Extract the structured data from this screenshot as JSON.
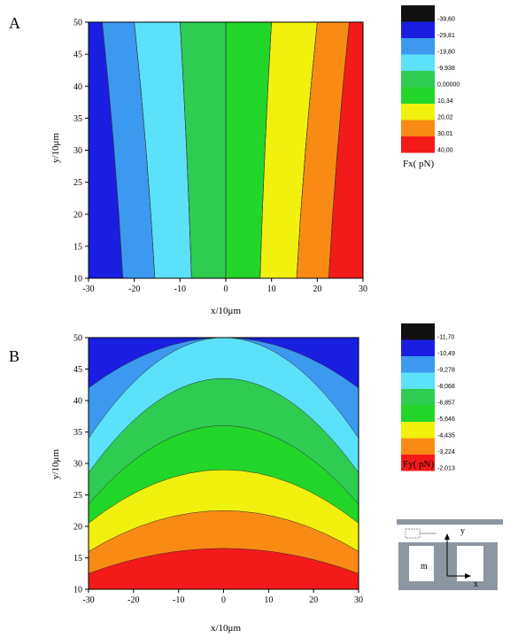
{
  "colors": {
    "palette": [
      "#111111",
      "#1a1ee0",
      "#3b99f0",
      "#5ce1fa",
      "#2ecc50",
      "#22d629",
      "#f2f00e",
      "#f98b14",
      "#f31a1a"
    ]
  },
  "chart_data": [
    {
      "type": "heatmap",
      "panel_label": "A",
      "xlabel": "x/10μm",
      "ylabel": "y/10μm",
      "xlim": [
        -30,
        30
      ],
      "ylim": [
        10,
        50
      ],
      "x_ticks": [
        "-30",
        "-20",
        "-10",
        "0",
        "10",
        "20",
        "30"
      ],
      "y_ticks": [
        "10",
        "15",
        "20",
        "25",
        "30",
        "35",
        "40",
        "45",
        "50"
      ],
      "colorbar_title": "Fx( pN)",
      "colorbar_labels": [
        "-39,60",
        "-29,81",
        "-19,80",
        "-9,938",
        "0,00000",
        "10,34",
        "20,02",
        "30,01",
        "40,00"
      ],
      "contour_levels": [
        -29.81,
        -19.8,
        -9.938,
        0,
        10.34,
        20.02,
        30.01
      ],
      "contour_x_at_y": {
        "y": [
          10,
          50
        ],
        "top": [
          -27,
          -20,
          -10,
          0,
          10,
          20,
          27
        ],
        "bottom": [
          -22.5,
          -15.5,
          -7.5,
          0,
          7.5,
          15.5,
          22.5
        ]
      }
    },
    {
      "type": "heatmap",
      "panel_label": "B",
      "xlabel": "x/10μm",
      "ylabel": "y/10μm",
      "xlim": [
        -30,
        30
      ],
      "ylim": [
        10,
        50
      ],
      "x_ticks": [
        "-30",
        "-20",
        "-10",
        "0",
        "10",
        "20",
        "30"
      ],
      "y_ticks": [
        "10",
        "15",
        "20",
        "25",
        "30",
        "35",
        "40",
        "45",
        "50"
      ],
      "colorbar_title": "Fy( pN)",
      "colorbar_labels": [
        "-11,70",
        "-10,49",
        "-9,278",
        "-8,068",
        "-6,857",
        "-5,646",
        "-4,435",
        "-3,224",
        "-2,013"
      ],
      "contour_y_at_x": {
        "x": [
          -30,
          0,
          30
        ],
        "levels": [
          {
            "value": -10.49,
            "center": 50,
            "edge": 42
          },
          {
            "value": -9.278,
            "center": 50,
            "edge": 34
          },
          {
            "value": -8.068,
            "center": 43.5,
            "edge": 28.5
          },
          {
            "value": -6.857,
            "center": 36,
            "edge": 23.5
          },
          {
            "value": -5.646,
            "center": 29,
            "edge": 20.5
          },
          {
            "value": -4.435,
            "center": 22.5,
            "edge": 16
          },
          {
            "value": -3.224,
            "center": 16.5,
            "edge": 12.5
          }
        ]
      }
    }
  ],
  "inset_diagram": {
    "label_m": "m",
    "label_y": "y",
    "label_x": "x"
  }
}
